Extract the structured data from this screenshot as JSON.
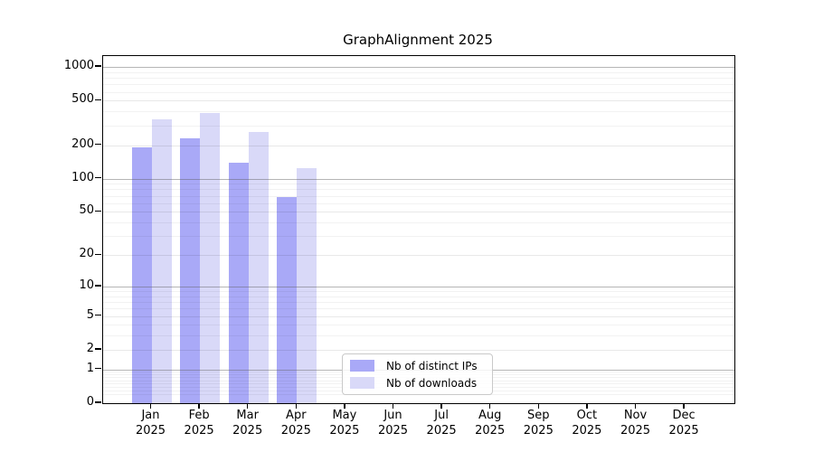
{
  "title": "GraphAlignment 2025",
  "year": "2025",
  "legend": {
    "items": [
      {
        "label": "Nb of distinct IPs",
        "color": "#a9a9f7"
      },
      {
        "label": "Nb of downloads",
        "color": "#d9d9f8"
      }
    ]
  },
  "chart_data": {
    "type": "bar",
    "title": "GraphAlignment 2025",
    "categories": [
      "Jan",
      "Feb",
      "Mar",
      "Apr",
      "May",
      "Jun",
      "Jul",
      "Aug",
      "Sep",
      "Oct",
      "Nov",
      "Dec"
    ],
    "year": "2025",
    "series": [
      {
        "name": "Nb of distinct IPs",
        "color": "#a9a9f7",
        "values": [
          190,
          230,
          140,
          68,
          0,
          0,
          0,
          0,
          0,
          0,
          0,
          0
        ]
      },
      {
        "name": "Nb of downloads",
        "color": "#d9d9f8",
        "values": [
          340,
          390,
          260,
          124,
          0,
          0,
          0,
          0,
          0,
          0,
          0,
          0
        ]
      }
    ],
    "y_scale": "log10(1+y)",
    "y_ticks": [
      0,
      1,
      2,
      5,
      10,
      20,
      50,
      100,
      200,
      500,
      1000
    ],
    "y_minor_ticks": [
      0.2,
      0.3,
      0.4,
      0.5,
      0.6,
      0.7,
      0.8,
      0.9,
      3,
      4,
      6,
      7,
      8,
      9,
      30,
      40,
      60,
      70,
      80,
      90,
      300,
      400,
      600,
      700,
      800,
      900
    ],
    "ylim": [
      0,
      1000
    ],
    "grid": true,
    "legend_position": "inside-bottom-center"
  }
}
